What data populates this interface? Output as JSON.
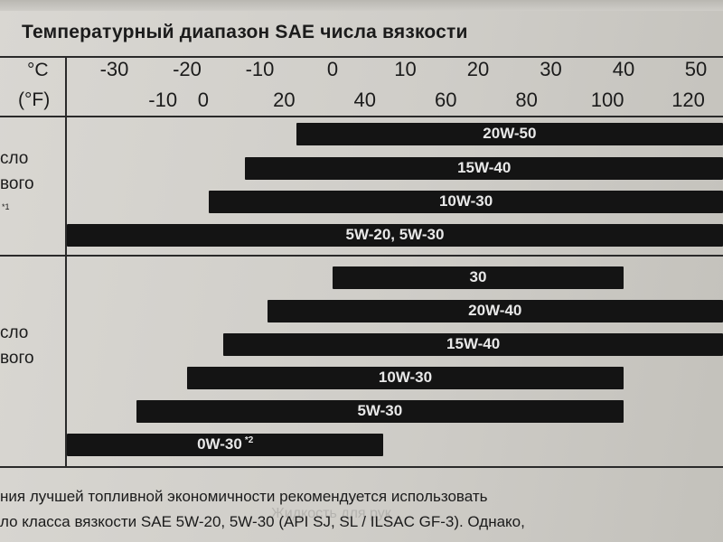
{
  "title": "Температурный диапазон SAE числа вязкости",
  "units": {
    "celsius": "°C",
    "fahrenheit": "(°F)"
  },
  "celsius_ticks": [
    "-30",
    "-20",
    "-10",
    "0",
    "10",
    "20",
    "30",
    "40",
    "50"
  ],
  "fahrenheit_ticks": [
    "-10",
    "0",
    "20",
    "40",
    "60",
    "80",
    "100",
    "120"
  ],
  "left_text": {
    "group1": [
      "сло",
      "вого"
    ],
    "group1_note": "*1",
    "group2": [
      "сло",
      "вого"
    ]
  },
  "groups": [
    {
      "bars": [
        {
          "label": "20W-50",
          "note": "",
          "from_c": -5,
          "to_c": "beyond"
        },
        {
          "label": "15W-40",
          "note": "",
          "from_c": -12,
          "to_c": "beyond"
        },
        {
          "label": "10W-30",
          "note": "",
          "from_c": -17,
          "to_c": "beyond"
        },
        {
          "label": "5W-20, 5W-30",
          "note": "",
          "from_c": "beyond",
          "to_c": "beyond"
        }
      ]
    },
    {
      "bars": [
        {
          "label": "30",
          "note": "",
          "from_c": 0,
          "to_c": 40
        },
        {
          "label": "20W-40",
          "note": "",
          "from_c": -9,
          "to_c": "beyond"
        },
        {
          "label": "15W-40",
          "note": "",
          "from_c": -15,
          "to_c": "beyond"
        },
        {
          "label": "10W-30",
          "note": "",
          "from_c": -20,
          "to_c": 40
        },
        {
          "label": "5W-30",
          "note": "",
          "from_c": -27,
          "to_c": 40
        },
        {
          "label": "0W-30",
          "note": "*2",
          "from_c": "beyond",
          "to_c": 7
        }
      ]
    }
  ],
  "bottom_text": [
    "ния лучшей топливной экономичности рекомендуется использовать",
    "ло класса вязкости SAE 5W-20, 5W-30 (API SJ, SL / ILSAC GF-3). Однако,"
  ]
}
